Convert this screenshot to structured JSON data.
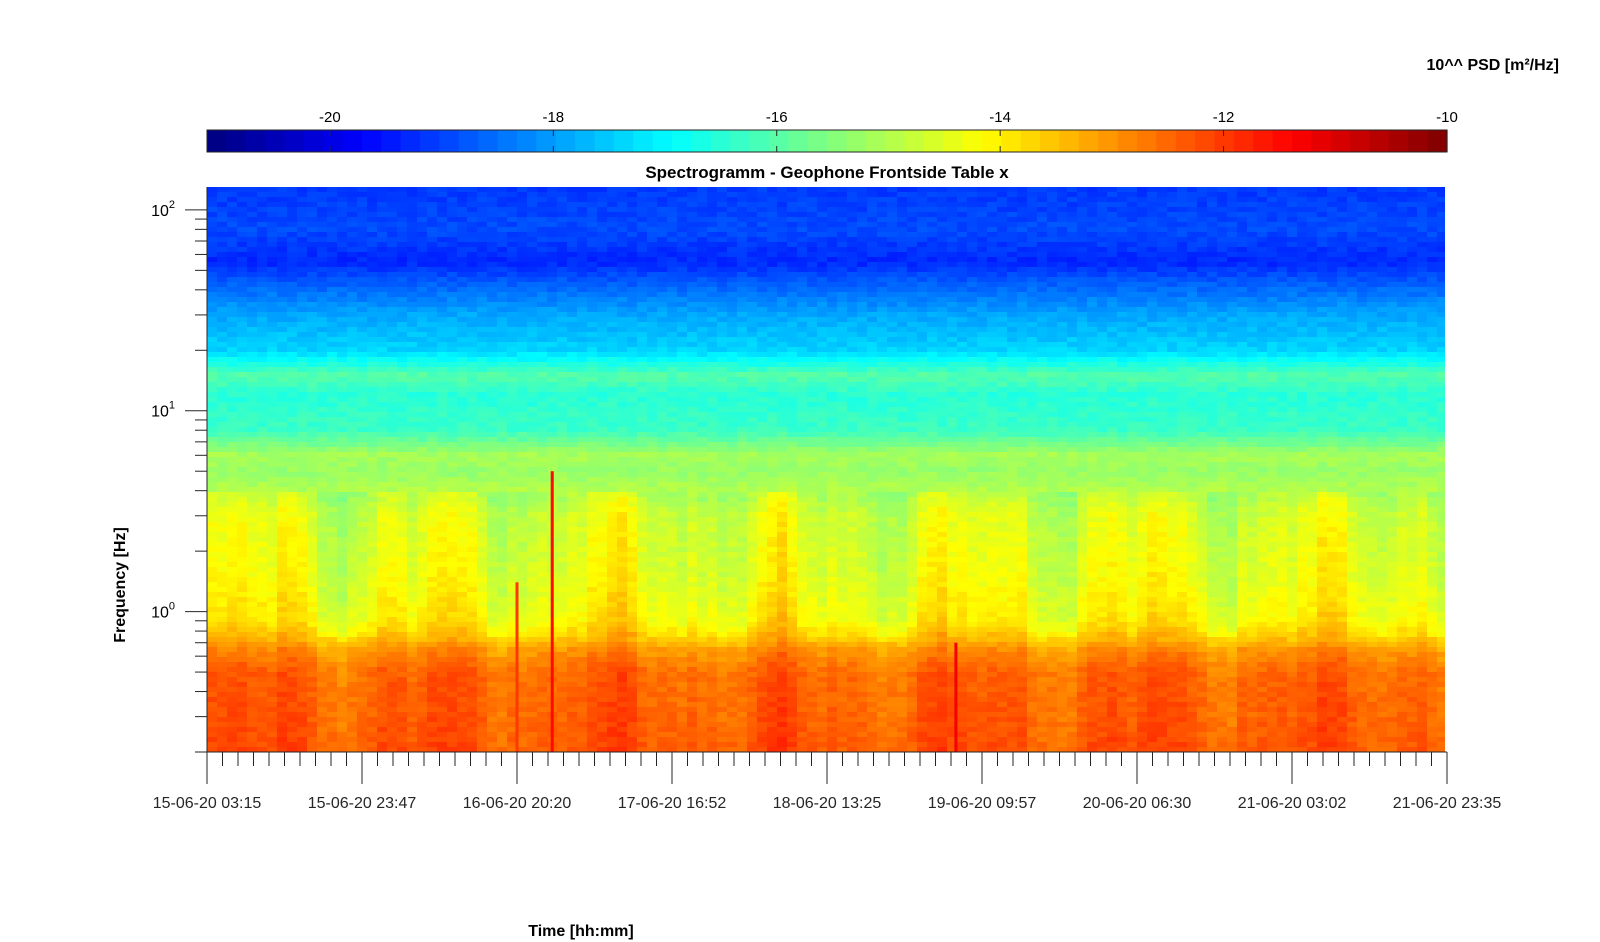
{
  "chart_data": {
    "type": "heatmap",
    "title": "Spectrogramm - Geophone Frontside Table x",
    "xlabel": "Time [hh:mm]",
    "ylabel": "Frequency [Hz]",
    "x_ticks": [
      "15-06-20 03:15",
      "15-06-20 23:47",
      "16-06-20 20:20",
      "17-06-20 16:52",
      "18-06-20 13:25",
      "19-06-20 09:57",
      "20-06-20 06:30",
      "21-06-20 03:02",
      "21-06-20 23:35"
    ],
    "y_scale": "log",
    "ylim": [
      0.2,
      130
    ],
    "y_ticks": [
      {
        "base": "10",
        "exp": "0",
        "value": 1
      },
      {
        "base": "10",
        "exp": "1",
        "value": 10
      },
      {
        "base": "10",
        "exp": "2",
        "value": 100
      }
    ],
    "colorbar": {
      "label": "10^^ PSD [m²/Hz]",
      "range": [
        -21.1,
        -10
      ],
      "ticks": [
        "-20",
        "-18",
        "-16",
        "-14",
        "-12",
        "-10"
      ],
      "tick_values": [
        -20,
        -18,
        -16,
        -14,
        -12,
        -10
      ],
      "colormap": "jet",
      "location": "top"
    },
    "psd_profile": [
      {
        "freq": 0.2,
        "log_psd": -12.3
      },
      {
        "freq": 0.3,
        "log_psd": -12.4
      },
      {
        "freq": 0.5,
        "log_psd": -12.5
      },
      {
        "freq": 0.65,
        "log_psd": -13.0
      },
      {
        "freq": 0.75,
        "log_psd": -13.6
      },
      {
        "freq": 0.9,
        "log_psd": -14.1
      },
      {
        "freq": 1.5,
        "log_psd": -14.4
      },
      {
        "freq": 3,
        "log_psd": -14.6
      },
      {
        "freq": 5,
        "log_psd": -15.3
      },
      {
        "freq": 6,
        "log_psd": -15.1
      },
      {
        "freq": 8,
        "log_psd": -16.3
      },
      {
        "freq": 12,
        "log_psd": -16.5
      },
      {
        "freq": 15,
        "log_psd": -16.0
      },
      {
        "freq": 20,
        "log_psd": -17.4
      },
      {
        "freq": 30,
        "log_psd": -17.9
      },
      {
        "freq": 45,
        "log_psd": -18.8
      },
      {
        "freq": 55,
        "log_psd": -19.3
      },
      {
        "freq": 80,
        "log_psd": -18.9
      },
      {
        "freq": 130,
        "log_psd": -19.1
      }
    ],
    "events": [
      {
        "time": "16-06-20 20:20",
        "freq_top": 1.4,
        "log_psd": -12.0
      },
      {
        "time": "17-06-20 01:00",
        "freq_top": 5.0,
        "log_psd": -11.5
      },
      {
        "time": "19-06-20 06:30",
        "freq_top": 0.7,
        "log_psd": -11.3
      }
    ],
    "grid": false
  },
  "colors": {
    "axis": "#262626",
    "text": "#000000",
    "background": "#ffffff"
  }
}
